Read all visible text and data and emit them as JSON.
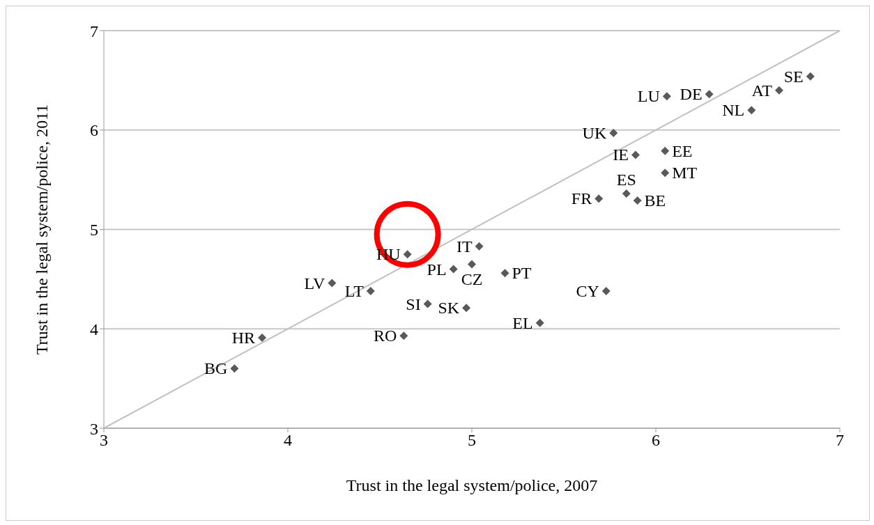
{
  "chart_data": {
    "type": "scatter",
    "xlabel": "Trust in the legal system/police, 2007",
    "ylabel": "Trust in the legal system/police, 2011",
    "xlim": [
      3,
      7
    ],
    "ylim": [
      3,
      7
    ],
    "xticks": [
      3,
      4,
      5,
      6,
      7
    ],
    "yticks": [
      3,
      4,
      5,
      6,
      7
    ],
    "grid": "y",
    "marker": "diamond",
    "series": [
      {
        "type": "line",
        "color": "#c0c0c0",
        "marker": "none",
        "x": [
          3,
          7
        ],
        "values": [
          3,
          7
        ]
      },
      {
        "name": "BG",
        "color": "#595959",
        "x": [
          3.71
        ],
        "values": [
          3.6
        ]
      },
      {
        "name": "HR",
        "color": "#595959",
        "x": [
          3.86
        ],
        "values": [
          3.91
        ]
      },
      {
        "name": "LV",
        "color": "#595959",
        "x": [
          4.24
        ],
        "values": [
          4.46
        ]
      },
      {
        "name": "LT",
        "color": "#595959",
        "x": [
          4.45
        ],
        "values": [
          4.38
        ]
      },
      {
        "name": "SI",
        "color": "#595959",
        "x": [
          4.76
        ],
        "values": [
          4.25
        ]
      },
      {
        "name": "CZ",
        "color": "#595959",
        "x": [
          5.0
        ],
        "values": [
          4.65
        ]
      },
      {
        "name": "HU",
        "color": "#595959",
        "x": [
          4.65
        ],
        "values": [
          4.75
        ]
      },
      {
        "name": "IT",
        "color": "#595959",
        "x": [
          5.04
        ],
        "values": [
          4.83
        ]
      },
      {
        "name": "PL",
        "color": "#595959",
        "x": [
          4.9
        ],
        "values": [
          4.6
        ]
      },
      {
        "name": "PT",
        "color": "#595959",
        "x": [
          5.18
        ],
        "values": [
          4.56
        ]
      },
      {
        "name": "SK",
        "color": "#595959",
        "x": [
          4.97
        ],
        "values": [
          4.21
        ]
      },
      {
        "name": "RO",
        "color": "#595959",
        "x": [
          4.63
        ],
        "values": [
          3.93
        ]
      },
      {
        "name": "EL",
        "color": "#595959",
        "x": [
          5.37
        ],
        "values": [
          4.06
        ]
      },
      {
        "name": "CY",
        "color": "#595959",
        "x": [
          5.73
        ],
        "values": [
          4.38
        ]
      },
      {
        "name": "FR",
        "color": "#595959",
        "x": [
          5.69
        ],
        "values": [
          5.31
        ]
      },
      {
        "name": "ES",
        "color": "#595959",
        "x": [
          5.84
        ],
        "values": [
          5.36
        ]
      },
      {
        "name": "BE",
        "color": "#595959",
        "x": [
          5.9
        ],
        "values": [
          5.29
        ]
      },
      {
        "name": "MT",
        "color": "#595959",
        "x": [
          6.05
        ],
        "values": [
          5.57
        ]
      },
      {
        "name": "EE",
        "color": "#595959",
        "x": [
          6.05
        ],
        "values": [
          5.79
        ]
      },
      {
        "name": "IE",
        "color": "#595959",
        "x": [
          5.89
        ],
        "values": [
          5.75
        ]
      },
      {
        "name": "UK",
        "color": "#595959",
        "x": [
          5.77
        ],
        "values": [
          5.97
        ]
      },
      {
        "name": "LU",
        "color": "#595959",
        "x": [
          6.06
        ],
        "values": [
          6.34
        ]
      },
      {
        "name": "DE",
        "color": "#595959",
        "x": [
          6.29
        ],
        "values": [
          6.36
        ]
      },
      {
        "name": "NL",
        "color": "#595959",
        "x": [
          6.52
        ],
        "values": [
          6.2
        ]
      },
      {
        "name": "AT",
        "color": "#595959",
        "x": [
          6.67
        ],
        "values": [
          6.4
        ]
      },
      {
        "name": "SE",
        "color": "#595959",
        "x": [
          6.84
        ],
        "values": [
          6.54
        ]
      }
    ]
  }
}
